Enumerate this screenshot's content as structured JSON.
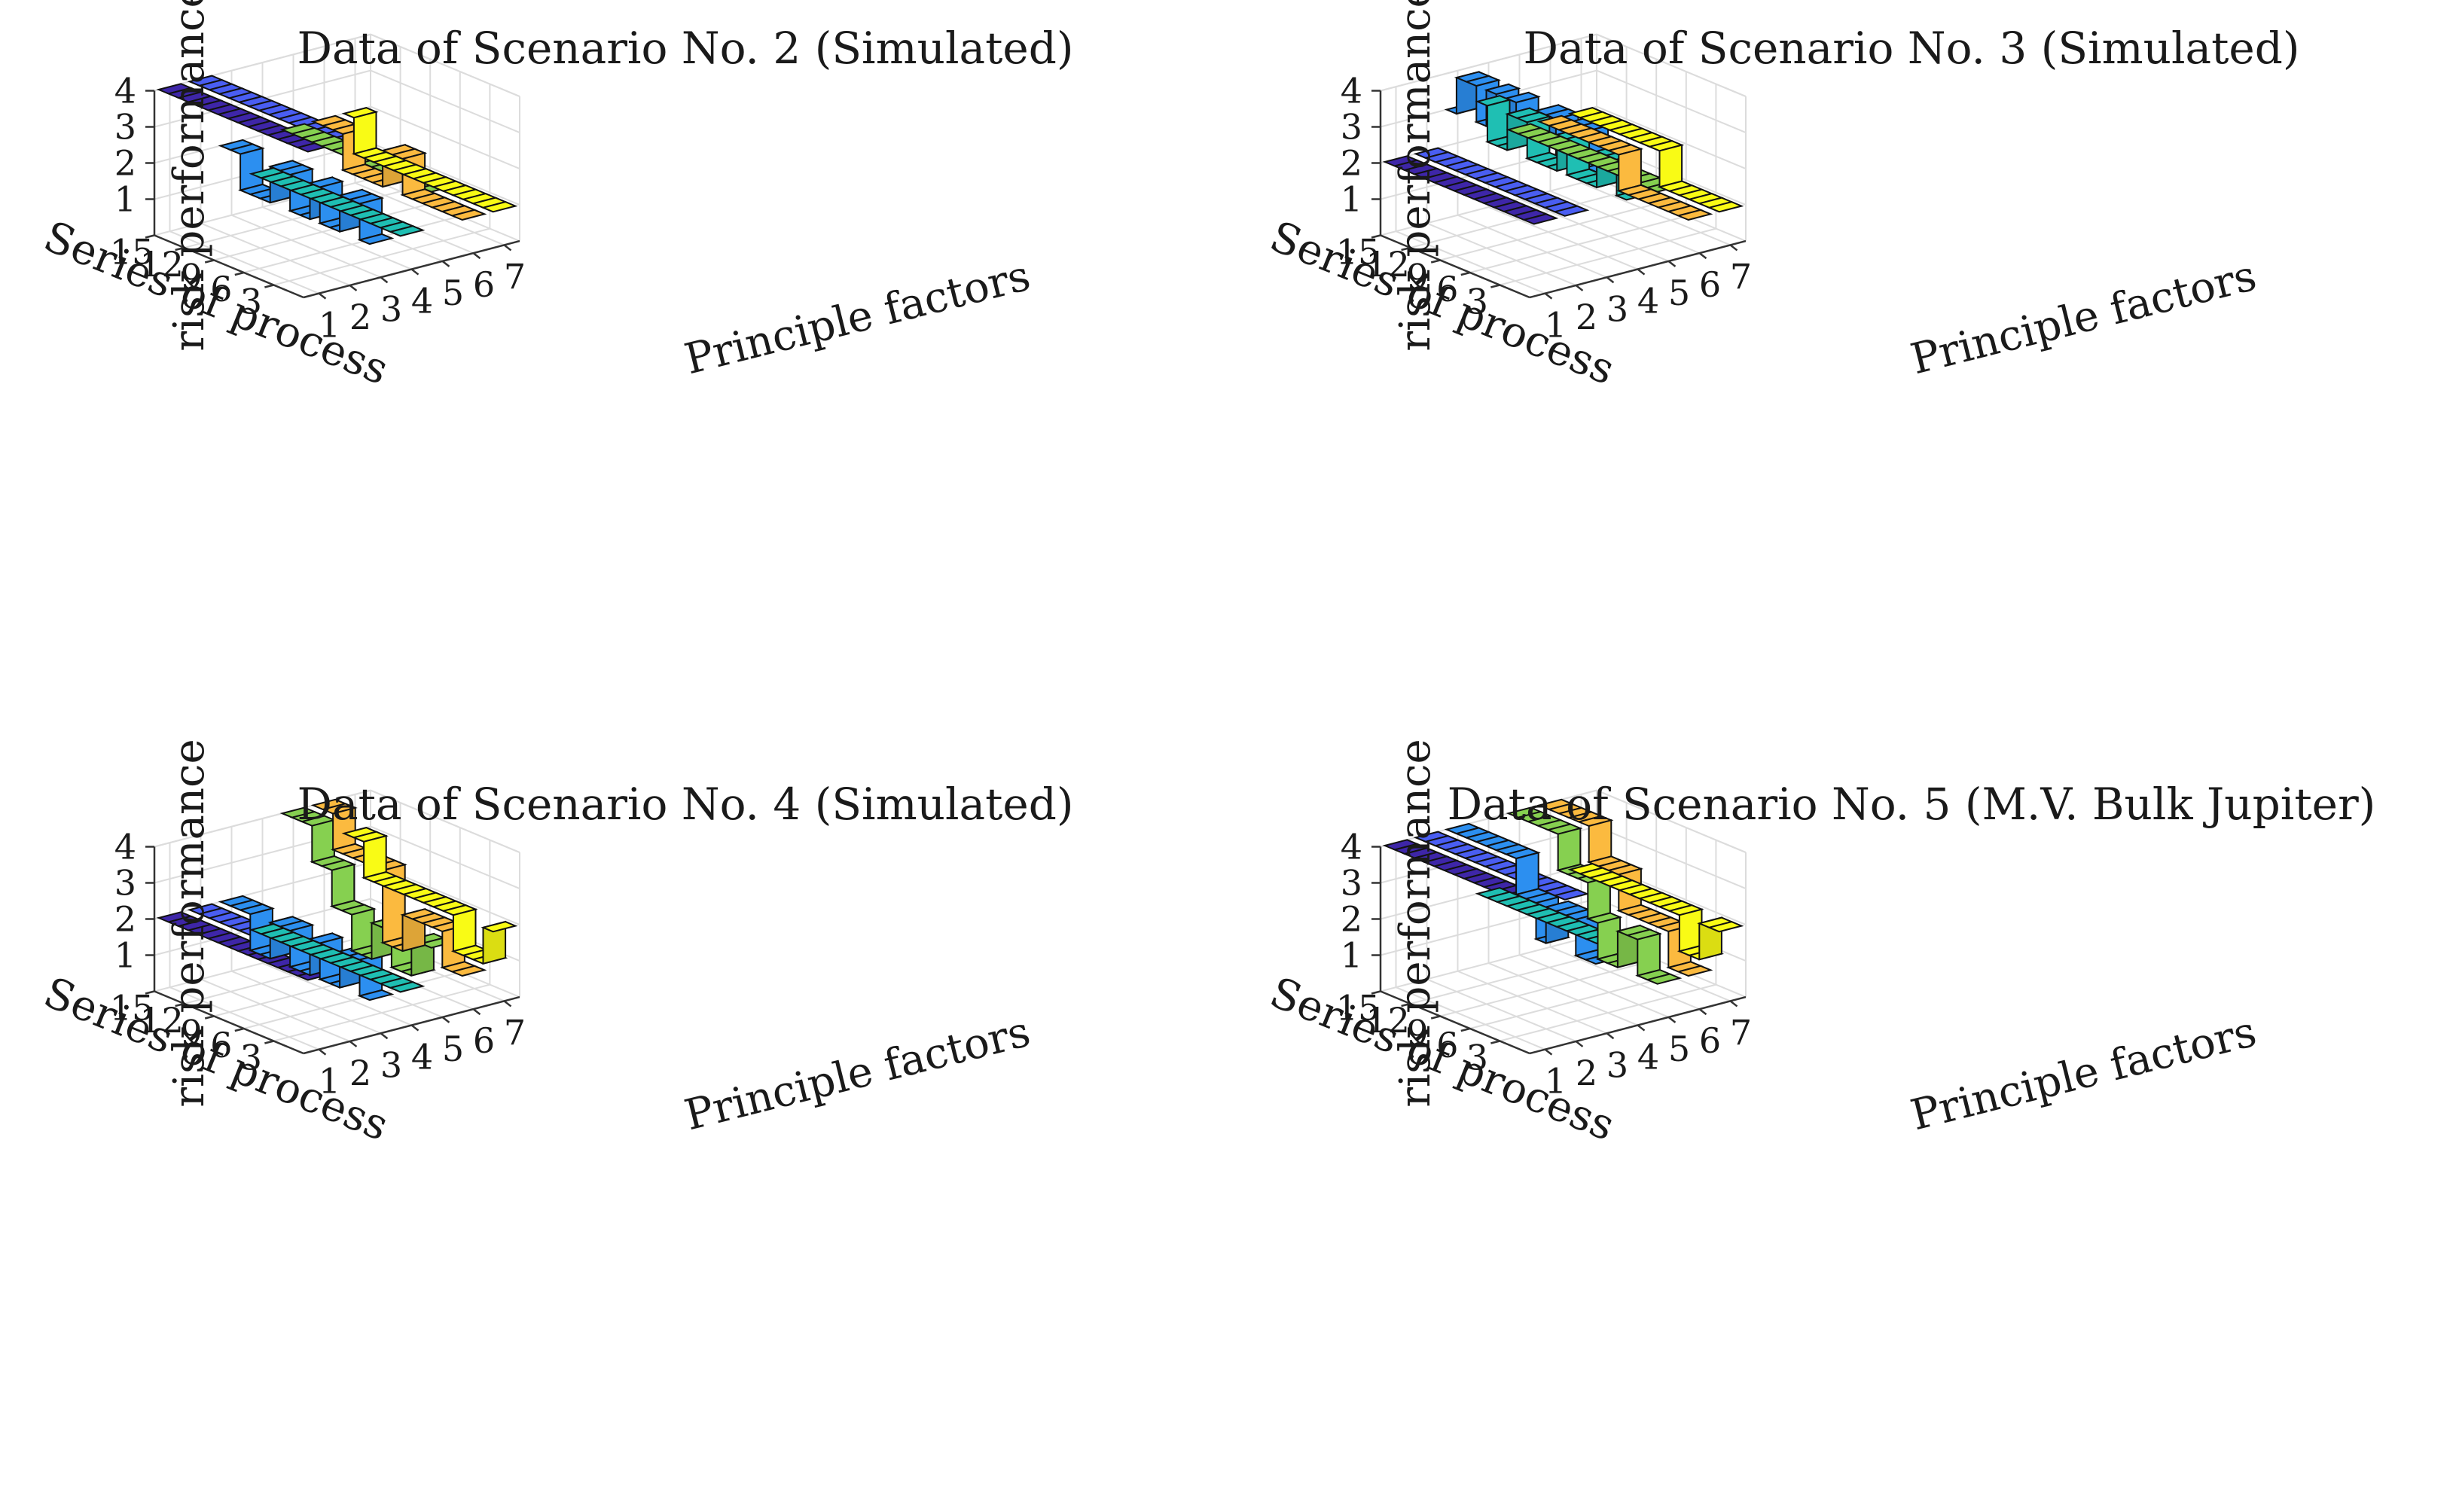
{
  "chart_data": [
    {
      "type": "ribbon3d",
      "title": "Data of Scenario No. 2 (Simulated)",
      "xlabel": "Principle factors",
      "ylabel": "Series of process",
      "zlabel": "risk performance",
      "xticks": [
        "1",
        "2",
        "3",
        "4",
        "5",
        "6",
        "7"
      ],
      "yticks": [
        "15",
        "12",
        "9",
        "6",
        "3"
      ],
      "zticks": [
        "1",
        "2",
        "3",
        "4"
      ],
      "xlim": [
        0.5,
        7.5
      ],
      "ylim": [
        0,
        15
      ],
      "zlim": [
        0,
        4
      ],
      "grid": true,
      "series": [
        {
          "factor": 1,
          "color": "#3e26a8",
          "values": [
            4,
            4,
            4,
            4,
            4,
            4,
            4,
            4,
            4,
            4,
            4,
            4,
            4,
            4,
            4
          ]
        },
        {
          "factor": 2,
          "color": "#4a5ef2",
          "values": [
            4,
            4,
            4,
            4,
            4,
            4,
            4,
            4,
            4,
            4,
            4,
            4,
            4,
            4,
            4
          ]
        },
        {
          "factor": 3,
          "color": "#2c8ff0",
          "values": [
            1,
            2,
            2,
            1,
            1,
            2,
            1,
            1,
            2,
            2,
            1,
            1,
            1,
            2,
            2
          ]
        },
        {
          "factor": 4,
          "color": "#1fbfb3",
          "values": [
            1,
            1,
            1,
            1,
            1,
            1,
            1,
            1,
            1,
            1,
            1,
            1,
            1,
            1,
            1
          ]
        },
        {
          "factor": 5,
          "color": "#86d050",
          "values": [
            2,
            2,
            2,
            2,
            2,
            2,
            2,
            2,
            2,
            2,
            2,
            2,
            2,
            2,
            2
          ]
        },
        {
          "factor": 6,
          "color": "#fbba3f",
          "values": [
            1,
            1,
            1,
            1,
            1,
            1,
            2,
            2,
            1,
            1,
            1,
            1,
            2,
            2,
            2
          ]
        },
        {
          "factor": 7,
          "color": "#f9fb15",
          "values": [
            1,
            1,
            1,
            1,
            1,
            1,
            1,
            1,
            1,
            1,
            1,
            1,
            1,
            1,
            2
          ]
        }
      ]
    },
    {
      "type": "ribbon3d",
      "title": "Data of Scenario No. 3 (Simulated)",
      "xlabel": "Principle factors",
      "ylabel": "Series of process",
      "zlabel": "risk performance",
      "xticks": [
        "1",
        "2",
        "3",
        "4",
        "5",
        "6",
        "7"
      ],
      "yticks": [
        "15",
        "12",
        "9",
        "6",
        "3"
      ],
      "zticks": [
        "1",
        "2",
        "3",
        "4"
      ],
      "xlim": [
        0.5,
        7.5
      ],
      "ylim": [
        0,
        15
      ],
      "zlim": [
        0,
        4
      ],
      "grid": true,
      "series": [
        {
          "factor": 1,
          "color": "#3e26a8",
          "values": [
            2,
            2,
            2,
            2,
            2,
            2,
            2,
            2,
            2,
            2,
            2,
            2,
            2,
            2,
            2
          ]
        },
        {
          "factor": 2,
          "color": "#4a5ef2",
          "values": [
            2,
            2,
            2,
            2,
            2,
            2,
            2,
            2,
            2,
            2,
            2,
            2,
            2,
            2,
            2
          ]
        },
        {
          "factor": 3,
          "color": "#2c8ff0",
          "values": [
            3,
            4,
            4,
            3,
            4,
            4,
            3,
            3,
            4,
            3,
            4,
            3,
            4,
            4,
            3
          ]
        },
        {
          "factor": 4,
          "color": "#1fbfb3",
          "values": [
            2,
            3,
            3,
            2,
            2,
            2,
            3,
            2,
            2,
            2,
            3,
            3,
            2,
            2,
            3
          ]
        },
        {
          "factor": 5,
          "color": "#86d050",
          "values": [
            2,
            2,
            2,
            2,
            2,
            2,
            2,
            2,
            2,
            2,
            2,
            2,
            2,
            2,
            2
          ]
        },
        {
          "factor": 6,
          "color": "#fbba3f",
          "values": [
            1,
            1,
            1,
            1,
            1,
            1,
            1,
            2,
            2,
            2,
            2,
            2,
            2,
            2,
            2
          ]
        },
        {
          "factor": 7,
          "color": "#f9fb15",
          "values": [
            1,
            1,
            1,
            1,
            1,
            1,
            2,
            2,
            2,
            2,
            2,
            2,
            2,
            2,
            2
          ]
        }
      ]
    },
    {
      "type": "ribbon3d",
      "title": "Data of Scenario No. 4 (Simulated)",
      "xlabel": "Principle factors",
      "ylabel": "Series of process",
      "zlabel": "risk performance",
      "xticks": [
        "1",
        "2",
        "3",
        "4",
        "5",
        "6",
        "7"
      ],
      "yticks": [
        "15",
        "12",
        "9",
        "6",
        "3"
      ],
      "zticks": [
        "1",
        "2",
        "3",
        "4"
      ],
      "xlim": [
        0.5,
        7.5
      ],
      "ylim": [
        0,
        15
      ],
      "zlim": [
        0,
        4
      ],
      "grid": true,
      "series": [
        {
          "factor": 1,
          "color": "#3e26a8",
          "values": [
            2,
            2,
            2,
            2,
            2,
            2,
            2,
            2,
            2,
            2,
            2,
            2,
            2,
            2,
            2
          ]
        },
        {
          "factor": 2,
          "color": "#4a5ef2",
          "values": [
            2,
            2,
            2,
            2,
            2,
            2,
            2,
            2,
            2,
            2,
            2,
            2,
            2,
            2,
            2
          ]
        },
        {
          "factor": 3,
          "color": "#2c8ff0",
          "values": [
            1,
            2,
            2,
            1,
            1,
            2,
            1,
            1,
            2,
            2,
            1,
            1,
            2,
            2,
            2
          ]
        },
        {
          "factor": 4,
          "color": "#1fbfb3",
          "values": [
            1,
            1,
            1,
            1,
            1,
            1,
            1,
            1,
            1,
            1,
            1,
            1,
            1,
            1,
            1
          ]
        },
        {
          "factor": 5,
          "color": "#86d050",
          "values": [
            2,
            2,
            1,
            1,
            2,
            2,
            1,
            1,
            2,
            2,
            3,
            3,
            4,
            4,
            4
          ]
        },
        {
          "factor": 6,
          "color": "#fbba3f",
          "values": [
            1,
            1,
            2,
            2,
            2,
            2,
            1,
            1,
            3,
            3,
            3,
            3,
            3,
            4,
            4
          ]
        },
        {
          "factor": 7,
          "color": "#f9fb15",
          "values": [
            2,
            1,
            1,
            1,
            2,
            2,
            2,
            2,
            2,
            2,
            2,
            2,
            2,
            3,
            3
          ]
        }
      ]
    },
    {
      "type": "ribbon3d",
      "title": "Data of Scenario No. 5 (M.V. Bulk Jupiter)",
      "xlabel": "Principle factors",
      "ylabel": "Series of process",
      "zlabel": "risk performance",
      "xticks": [
        "1",
        "2",
        "3",
        "4",
        "5",
        "6",
        "7"
      ],
      "yticks": [
        "15",
        "12",
        "9",
        "6",
        "3"
      ],
      "zticks": [
        "1",
        "2",
        "3",
        "4"
      ],
      "xlim": [
        0.5,
        7.5
      ],
      "ylim": [
        0,
        15
      ],
      "zlim": [
        0,
        4
      ],
      "grid": true,
      "series": [
        {
          "factor": 1,
          "color": "#3e26a8",
          "values": [
            4,
            4,
            4,
            4,
            4,
            4,
            4,
            4,
            4,
            4,
            4,
            4,
            4,
            4,
            4
          ]
        },
        {
          "factor": 2,
          "color": "#4a5ef2",
          "values": [
            4,
            4,
            4,
            4,
            4,
            4,
            4,
            4,
            4,
            4,
            4,
            4,
            4,
            4,
            4
          ]
        },
        {
          "factor": 3,
          "color": "#2c8ff0",
          "values": [
            2,
            2,
            3,
            3,
            3,
            2,
            3,
            3,
            4,
            4,
            4,
            4,
            4,
            4,
            4
          ]
        },
        {
          "factor": 4,
          "color": "#1fbfb3",
          "values": [
            2,
            2,
            2,
            2,
            2,
            2,
            2,
            2,
            2,
            2,
            2,
            2,
            2,
            2,
            2
          ]
        },
        {
          "factor": 5,
          "color": "#86d050",
          "values": [
            1,
            1,
            2,
            2,
            1,
            1,
            2,
            3,
            3,
            3,
            4,
            4,
            4,
            4,
            4
          ]
        },
        {
          "factor": 6,
          "color": "#fbba3f",
          "values": [
            1,
            1,
            2,
            2,
            2,
            2,
            2,
            3,
            3,
            3,
            4,
            4,
            4,
            4,
            4
          ]
        },
        {
          "factor": 7,
          "color": "#f9fb15",
          "values": [
            2,
            2,
            1,
            1,
            2,
            2,
            2,
            2,
            2,
            2,
            2,
            2,
            2,
            2,
            2
          ]
        }
      ]
    }
  ]
}
